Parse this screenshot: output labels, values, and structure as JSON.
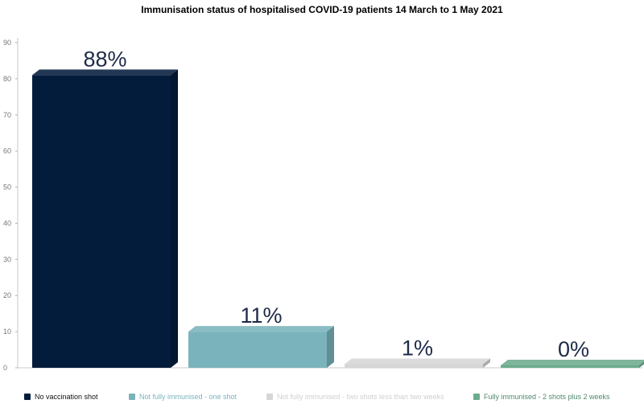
{
  "chart_data": {
    "type": "bar",
    "title": "Immunisation status of hospitalised COVID-19 patients 14 March to 1 May 2021",
    "xlabel": "",
    "ylabel": "",
    "ylim": [
      0,
      90
    ],
    "yticks": [
      "0",
      "10",
      "20",
      "30",
      "40",
      "50",
      "60",
      "70",
      "80",
      "90"
    ],
    "categories": [
      "No vaccination shot",
      "Not fully immunised - one shot",
      "Not fully immunised - two shots less than two weeks",
      "Fully immunised - 2 shots plus 2 weeks"
    ],
    "values": [
      81,
      10,
      1,
      0.3
    ],
    "data_labels": [
      "88%",
      "11%",
      "1%",
      "0%"
    ],
    "colors": [
      "#041c3c",
      "#7ab3bb",
      "#d6d6d6",
      "#6cab8d"
    ],
    "legend_text_colors": [
      "#111111",
      "#7ab3bb",
      "#d0d0d0",
      "#4d8a6c"
    ],
    "legend_position": "bottom"
  }
}
